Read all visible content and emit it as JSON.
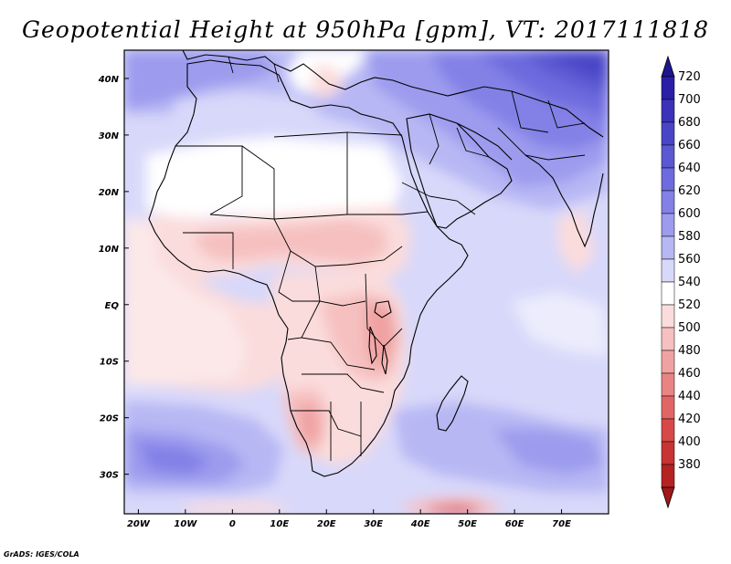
{
  "title": "Geopotential Height at 950hPa [gpm], VT: 2017111818",
  "credit": "GrADS: IGES/COLA",
  "map": {
    "lon_range": [
      -23,
      80
    ],
    "lat_range": [
      -37,
      45
    ],
    "x_ticks": [
      {
        "lon": -20,
        "label": "20W"
      },
      {
        "lon": -10,
        "label": "10W"
      },
      {
        "lon": 0,
        "label": "0"
      },
      {
        "lon": 10,
        "label": "10E"
      },
      {
        "lon": 20,
        "label": "20E"
      },
      {
        "lon": 30,
        "label": "30E"
      },
      {
        "lon": 40,
        "label": "40E"
      },
      {
        "lon": 50,
        "label": "50E"
      },
      {
        "lon": 60,
        "label": "60E"
      },
      {
        "lon": 70,
        "label": "70E"
      }
    ],
    "y_ticks": [
      {
        "lat": 40,
        "label": "40N"
      },
      {
        "lat": 30,
        "label": "30N"
      },
      {
        "lat": 20,
        "label": "20N"
      },
      {
        "lat": 10,
        "label": "10N"
      },
      {
        "lat": 0,
        "label": "EQ"
      },
      {
        "lat": -10,
        "label": "10S"
      },
      {
        "lat": -20,
        "label": "20S"
      },
      {
        "lat": -30,
        "label": "30S"
      }
    ]
  },
  "colorbar": {
    "levels": [
      {
        "label": "720",
        "color": "#2a1fa6"
      },
      {
        "label": "700",
        "color": "#3a32b8"
      },
      {
        "label": "680",
        "color": "#4a45c6"
      },
      {
        "label": "660",
        "color": "#5b58d2"
      },
      {
        "label": "640",
        "color": "#6d6bde"
      },
      {
        "label": "620",
        "color": "#8381e6"
      },
      {
        "label": "600",
        "color": "#9c9bee"
      },
      {
        "label": "580",
        "color": "#b7b7f4"
      },
      {
        "label": "560",
        "color": "#d8d8fa"
      },
      {
        "label": "540",
        "color": "#ffffff"
      },
      {
        "label": "520",
        "color": "#fbdcdc"
      },
      {
        "label": "500",
        "color": "#f6c0c0"
      },
      {
        "label": "480",
        "color": "#f0a2a2"
      },
      {
        "label": "460",
        "color": "#e98484"
      },
      {
        "label": "440",
        "color": "#e26565"
      },
      {
        "label": "420",
        "color": "#d84848"
      },
      {
        "label": "400",
        "color": "#c83333"
      },
      {
        "label": "380",
        "color": "#b52222"
      }
    ],
    "top_arrow_color": "#1e1690",
    "bottom_arrow_color": "#a01818"
  }
}
